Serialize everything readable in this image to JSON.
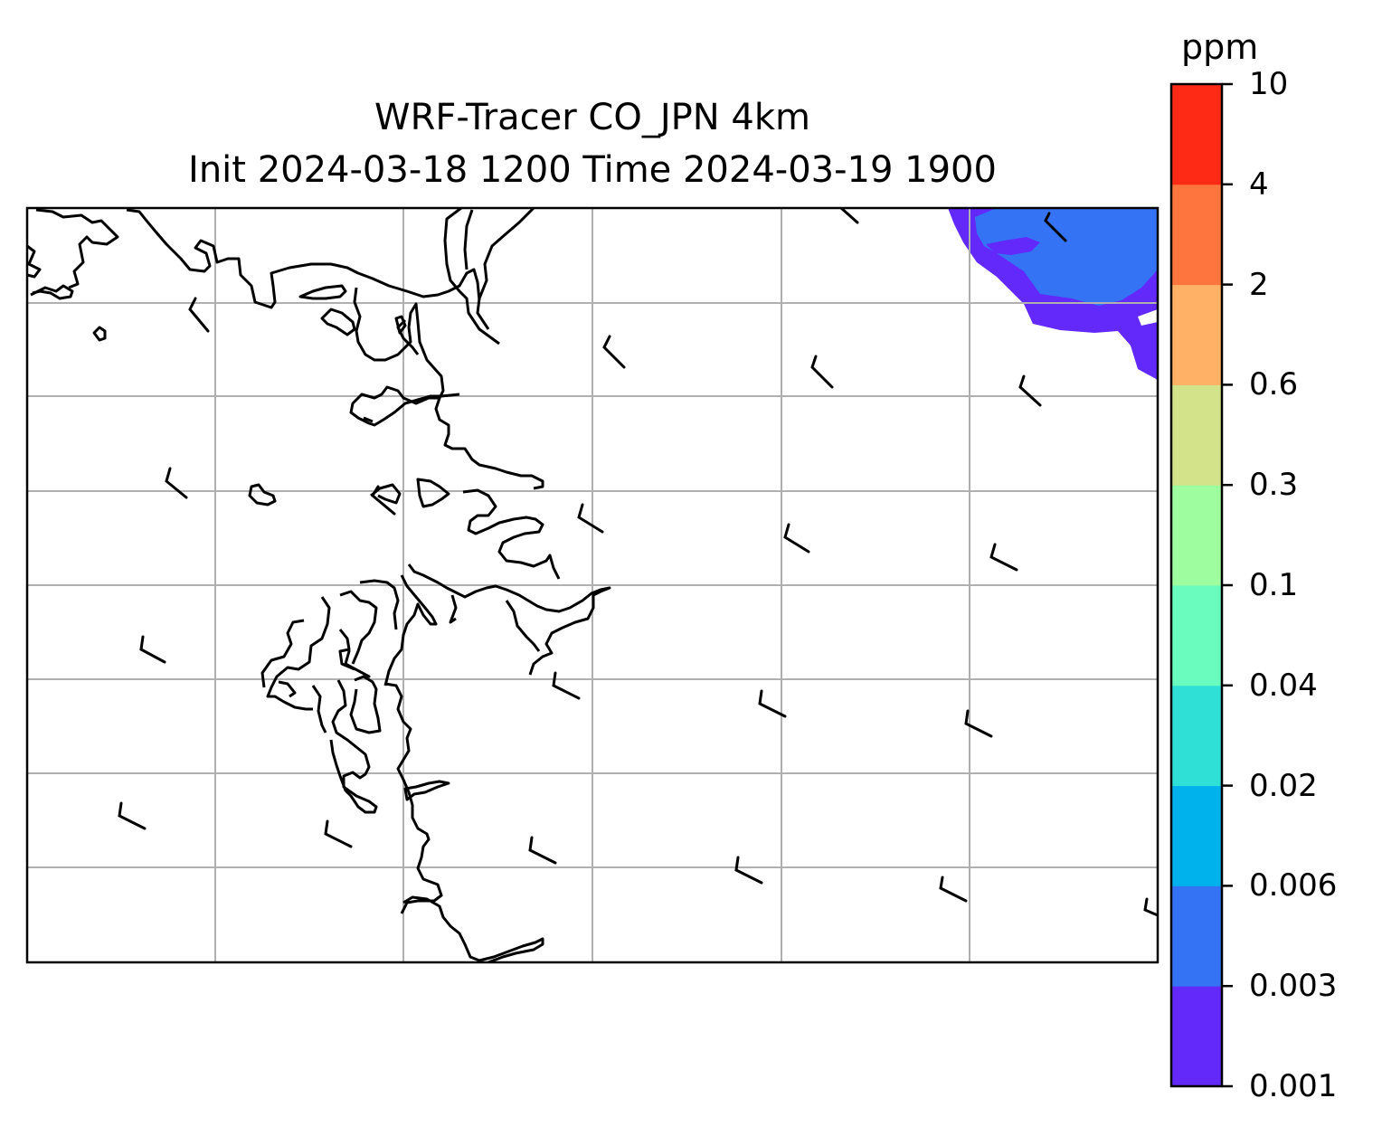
{
  "title_line1": "WRF-Tracer CO_JPN 4km",
  "title_line2": "Init 2024-03-18 1200 Time 2024-03-19 1900",
  "colorbar": {
    "unit": "ppm",
    "levels": [
      "0.001",
      "0.003",
      "0.006",
      "0.02",
      "0.04",
      "0.1",
      "0.3",
      "0.6",
      "2",
      "4",
      "10"
    ],
    "colors": [
      "#6229fa",
      "#3474f4",
      "#00b2ec",
      "#2fe0d7",
      "#69fcbe",
      "#9efd9f",
      "#d2e38a",
      "#ffb266",
      "#ff753e",
      "#ff2a16"
    ]
  },
  "map": {
    "gridlines": "on",
    "gridline_color": "#b0b0b0",
    "coastline_color": "#000000",
    "tracer_fill_levels": [
      "0.001",
      "0.003"
    ]
  }
}
